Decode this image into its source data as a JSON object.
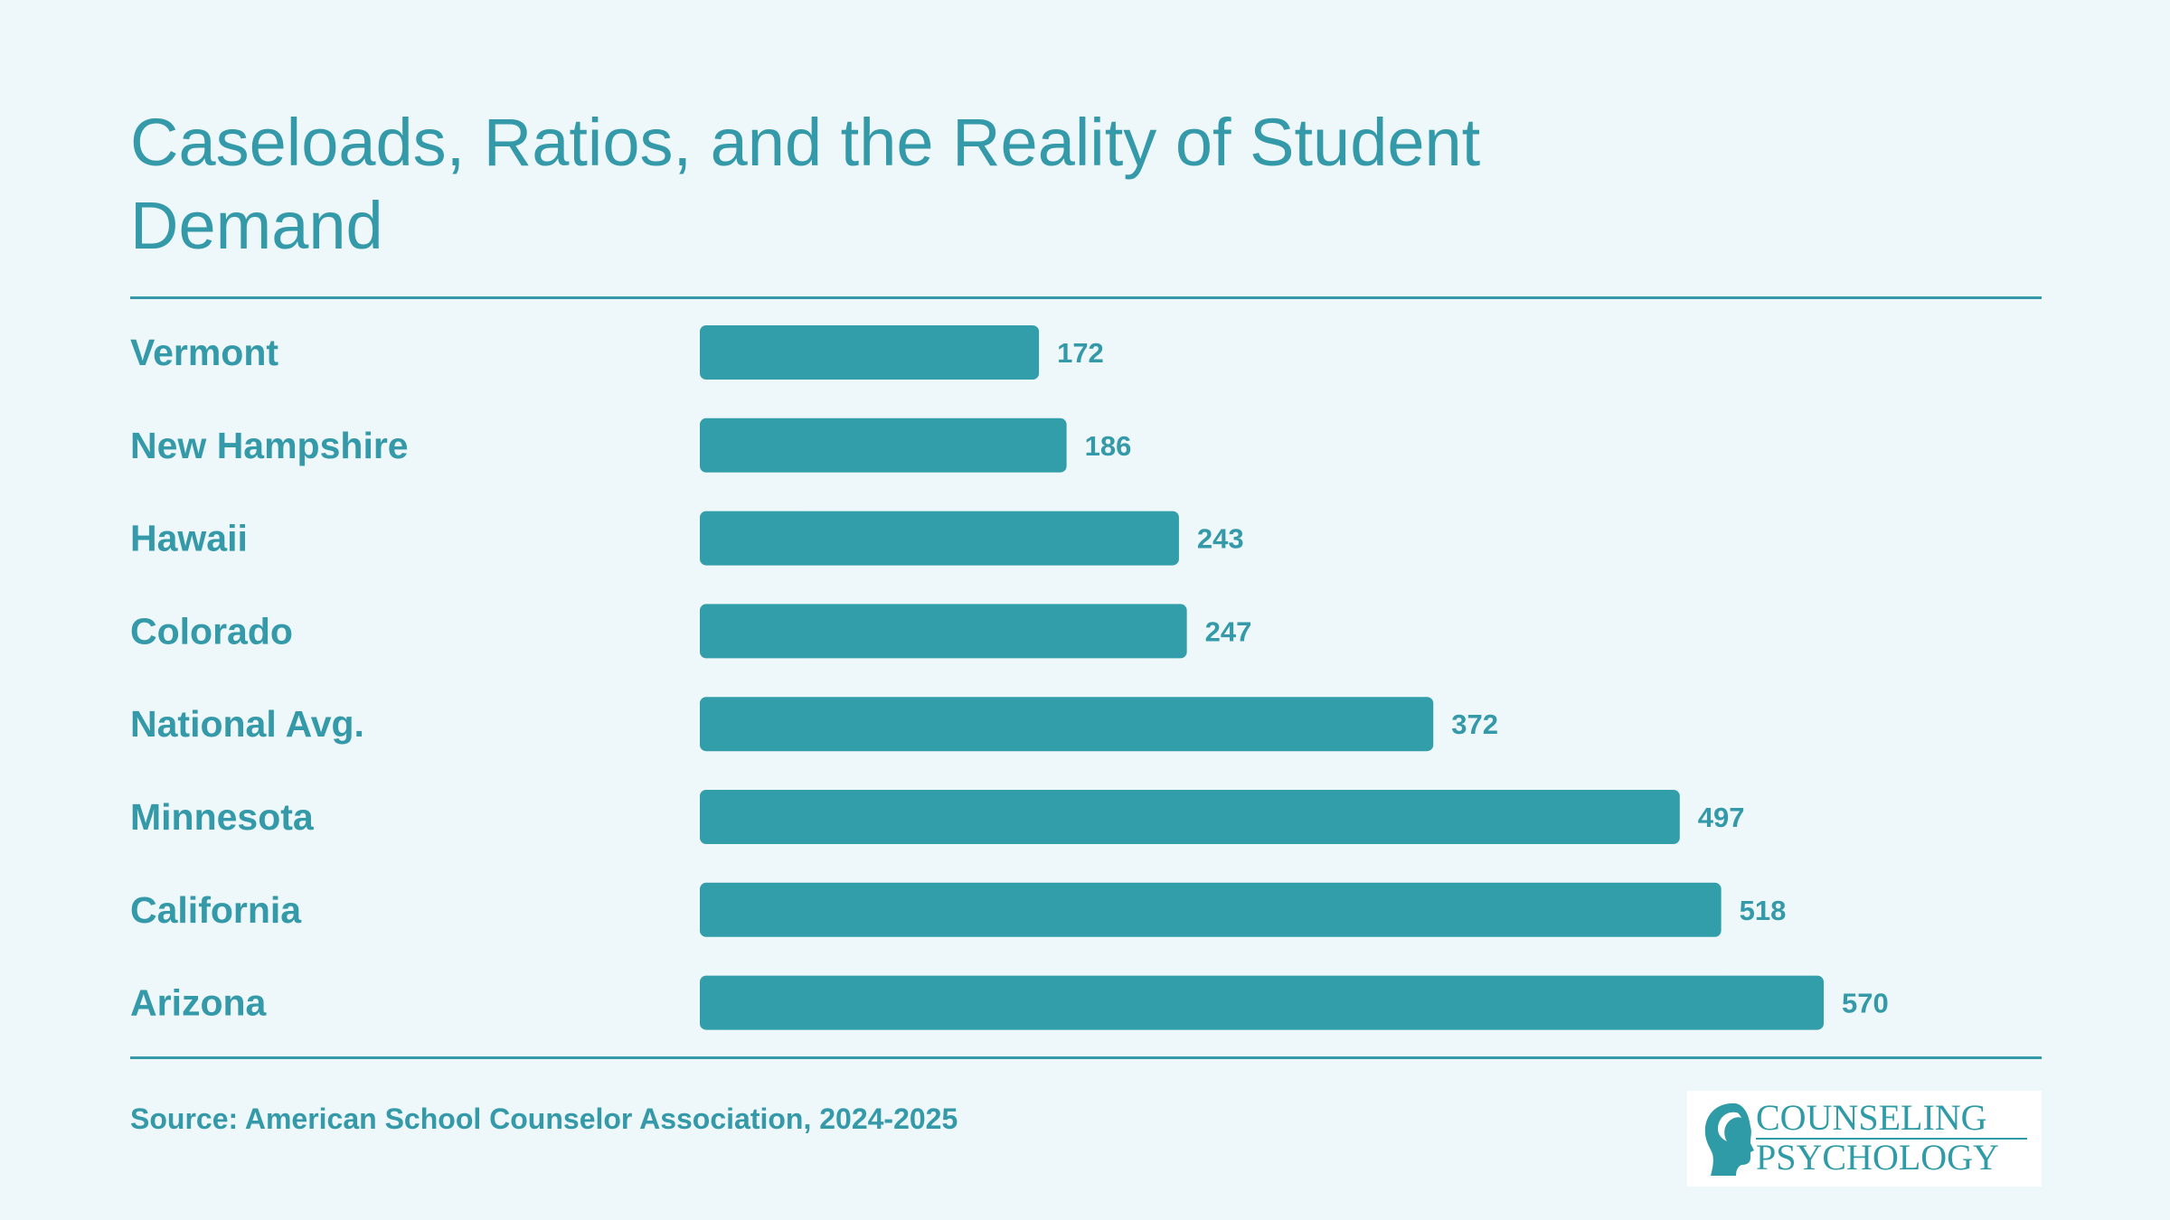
{
  "title": "Caseloads, Ratios, and the Reality of Student Demand",
  "source": "Source: American School Counselor Association, 2024-2025",
  "logo": {
    "line1": "COUNSELING",
    "line2": "PSYCHOLOGY",
    "icon": "head-profile-icon"
  },
  "colors": {
    "accent": "#3499a8",
    "bar": "#319ea9",
    "background": "#eef7f9"
  },
  "chart_data": {
    "type": "bar",
    "orientation": "horizontal",
    "title": "Caseloads, Ratios, and the Reality of Student Demand",
    "categories": [
      "Vermont",
      "New Hampshire",
      "Hawaii",
      "Colorado",
      "National Avg.",
      "Minnesota",
      "California",
      "Arizona"
    ],
    "values": [
      172,
      186,
      243,
      247,
      372,
      497,
      518,
      570
    ],
    "xlim": [
      0,
      570
    ],
    "grid": false,
    "legend": "none",
    "data_labels": true
  }
}
